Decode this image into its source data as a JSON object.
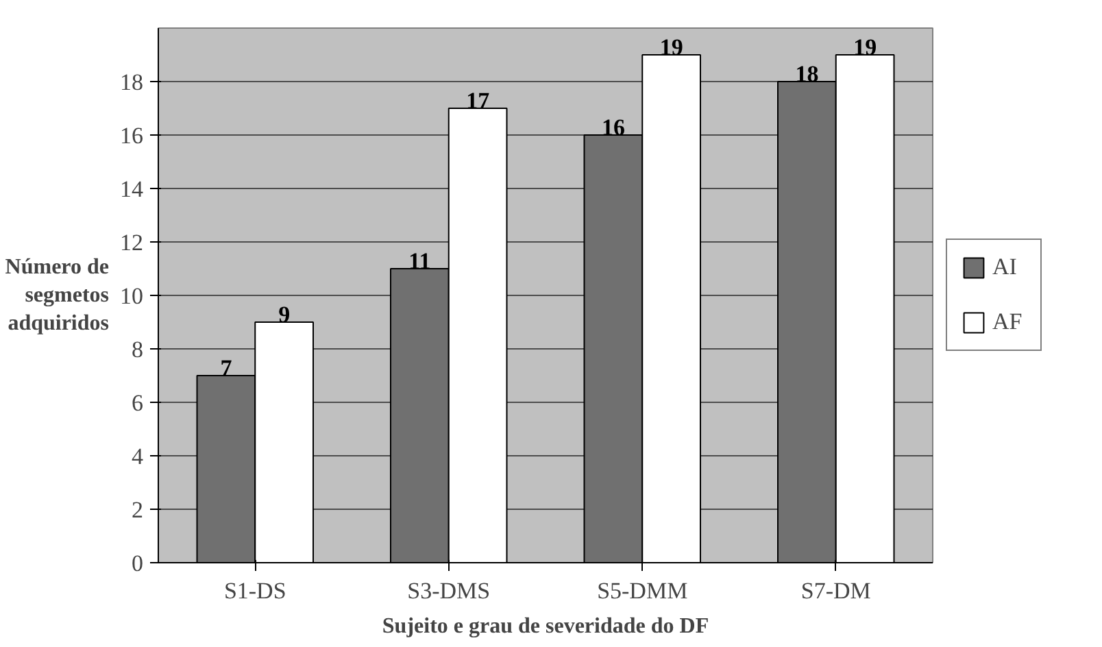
{
  "chart_data": {
    "type": "bar",
    "xlabel": "Sujeito e grau de severidade do DF",
    "ylabel": "Número de\nsegmetos\nadquiridos",
    "categories": [
      "S1-DS",
      "S3-DMS",
      "S5-DMM",
      "S7-DM"
    ],
    "series": [
      {
        "name": "AI",
        "color": "#707070",
        "values": [
          7,
          11,
          16,
          18
        ]
      },
      {
        "name": "AF",
        "color": "#ffffff",
        "values": [
          9,
          17,
          19,
          19
        ]
      }
    ],
    "ylim": [
      0,
      20
    ],
    "yticks": [
      0,
      2,
      4,
      6,
      8,
      10,
      12,
      14,
      16,
      18
    ],
    "grid": "y",
    "legend": "right",
    "data_labels": true
  }
}
